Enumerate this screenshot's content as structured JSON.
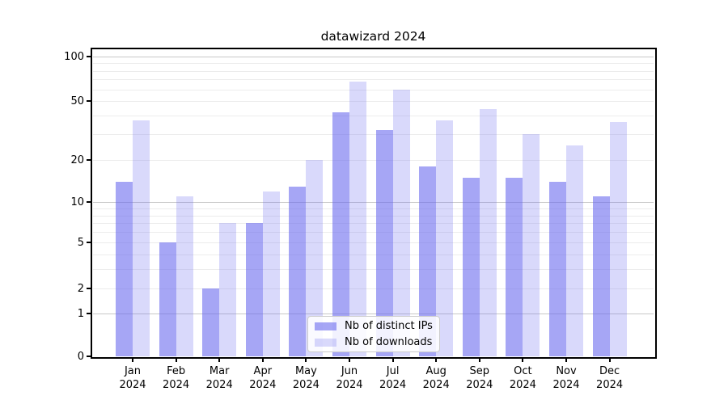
{
  "figure": {
    "title": "datawizard 2024"
  },
  "chart_data": {
    "type": "bar",
    "title": "datawizard 2024",
    "categories": [
      "Jan 2024",
      "Feb 2024",
      "Mar 2024",
      "Apr 2024",
      "May 2024",
      "Jun 2024",
      "Jul 2024",
      "Aug 2024",
      "Sep 2024",
      "Oct 2024",
      "Nov 2024",
      "Dec 2024"
    ],
    "x_tick_month": [
      "Jan",
      "Feb",
      "Mar",
      "Apr",
      "May",
      "Jun",
      "Jul",
      "Aug",
      "Sep",
      "Oct",
      "Nov",
      "Dec"
    ],
    "x_tick_year": "2024",
    "series": [
      {
        "name": "Nb of distinct IPs",
        "color": "#6666ee94",
        "values": [
          14,
          5,
          2,
          7,
          13,
          42,
          32,
          18,
          15,
          15,
          14,
          11
        ]
      },
      {
        "name": "Nb of downloads",
        "color": "#6666ee40",
        "values": [
          37,
          11,
          7,
          12,
          20,
          68,
          60,
          37,
          44,
          30,
          25,
          36
        ]
      }
    ],
    "yscale": "log1p",
    "ylim": [
      0,
      114
    ],
    "y_tick_values": [
      0,
      1,
      2,
      5,
      10,
      20,
      50,
      100
    ],
    "y_major_gridlines": [
      1,
      10,
      100
    ],
    "y_minor_gridlines": [
      2,
      3,
      4,
      5,
      6,
      7,
      8,
      9,
      20,
      30,
      40,
      50,
      60,
      70,
      80,
      90
    ],
    "grid": "horizontal only",
    "legend_position": "lower center inside",
    "colors": {
      "bar_base": "#6666ee",
      "major_grid": "#c8c8c8",
      "minor_grid": "#ececec",
      "axis": "#000000",
      "text": "#000000",
      "background": "#ffffff"
    }
  }
}
